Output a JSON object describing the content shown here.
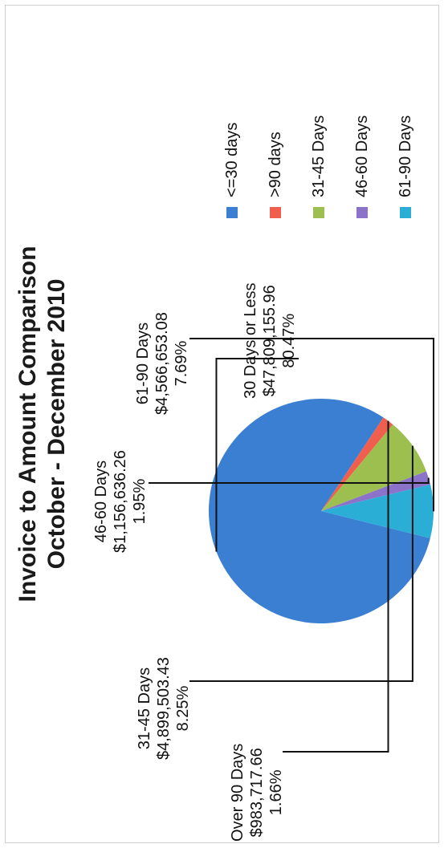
{
  "chart_data": {
    "type": "pie",
    "title": "Invoice to Amount Comparison",
    "subtitle": "October - December 2010",
    "slices": [
      {
        "legend": "<=30 days",
        "name": "30 Days or Less",
        "amount": "$47,809,155.96",
        "percent": "80.47%",
        "value": 80.47,
        "color": "#3b7fd3"
      },
      {
        "legend": ">90 days",
        "name": "Over 90 Days",
        "amount": "$983,717.66",
        "percent": "1.66%",
        "value": 1.66,
        "color": "#f05f4e"
      },
      {
        "legend": "31-45 Days",
        "name": "31-45 Days",
        "amount": "$4,899,503.43",
        "percent": "8.25%",
        "value": 8.25,
        "color": "#9dbf4f"
      },
      {
        "legend": "46-60 Days",
        "name": "46-60 Days",
        "amount": "$1,156,636.26",
        "percent": "1.95%",
        "value": 1.95,
        "color": "#8b73c9"
      },
      {
        "legend": "61-90 Days",
        "name": "61-90 Days",
        "amount": "$4,566,653.08",
        "percent": "7.69%",
        "value": 7.69,
        "color": "#2aaed6"
      }
    ],
    "legend_position": "right"
  }
}
